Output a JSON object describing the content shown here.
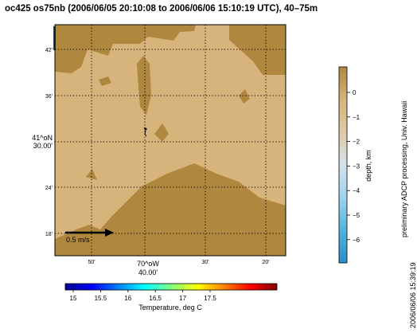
{
  "title": "oc425 os75nb (2006/06/05 20:10:08 to 2006/06/06 15:10:19 UTC), 40–75m",
  "map": {
    "colors": {
      "land": "#b0873e",
      "shallow": "#d6b47c",
      "frame": "#000000",
      "grid": "#000000",
      "arrow": "#000000"
    },
    "lat_ticks": [
      "42'",
      "36'",
      "24'",
      "18'"
    ],
    "lat_center": {
      "deg": "41^oN",
      "min": "30.00'"
    },
    "lon_ticks": [
      "50'",
      "30'",
      "20'"
    ],
    "lon_center": {
      "deg": "70^oW",
      "min": "40.00'"
    },
    "scale_arrow_label": "0.5 m/s"
  },
  "depth_colorbar": {
    "label": "depth, km",
    "ticks": [
      "0",
      "−1",
      "−2",
      "−3",
      "−4",
      "−5",
      "−6"
    ],
    "stops": [
      "#b0873e",
      "#d6b47c",
      "#e0c9a4",
      "#d5e3ec",
      "#9ed4f0",
      "#52b4dc",
      "#2a8ec8"
    ]
  },
  "temperature_colorbar": {
    "label": "Temperature, deg C",
    "ticks": [
      "15",
      "15.5",
      "16",
      "16.5",
      "17",
      "17.5"
    ],
    "stops": [
      "#00008f",
      "#0000ff",
      "#0080ff",
      "#00ffff",
      "#80ff80",
      "#ffff00",
      "#ff8000",
      "#ff0000",
      "#800000"
    ]
  },
  "credit": "preliminary ADCP processing,  Univ. Hawaii",
  "timestamp": "2006/06/06 15:39:19"
}
